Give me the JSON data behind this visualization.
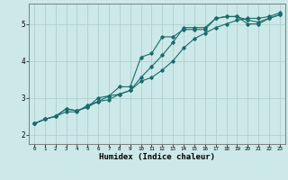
{
  "xlabel": "Humidex (Indice chaleur)",
  "background_color": "#cce8e8",
  "grid_color": "#b0d0d0",
  "line_color": "#1a6b6b",
  "xlim": [
    -0.5,
    23.5
  ],
  "ylim": [
    1.75,
    5.55
  ],
  "yticks": [
    2,
    3,
    4,
    5
  ],
  "xticks": [
    0,
    1,
    2,
    3,
    4,
    5,
    6,
    7,
    8,
    9,
    10,
    11,
    12,
    13,
    14,
    15,
    16,
    17,
    18,
    19,
    20,
    21,
    22,
    23
  ],
  "line1_x": [
    0,
    1,
    2,
    3,
    4,
    5,
    6,
    7,
    8,
    9,
    10,
    11,
    12,
    13,
    14,
    15,
    16,
    17,
    18,
    19,
    20,
    21,
    22,
    23
  ],
  "line1_y": [
    2.3,
    2.42,
    2.5,
    2.62,
    2.62,
    2.8,
    2.9,
    3.05,
    3.1,
    3.2,
    3.55,
    3.85,
    4.15,
    4.5,
    4.9,
    4.9,
    4.9,
    5.15,
    5.2,
    5.2,
    5.1,
    5.05,
    5.15,
    5.25
  ],
  "line2_x": [
    0,
    1,
    2,
    3,
    4,
    5,
    6,
    7,
    8,
    9,
    10,
    11,
    12,
    13,
    14,
    15,
    16,
    17,
    18,
    19,
    20,
    21,
    22,
    23
  ],
  "line2_y": [
    2.3,
    2.42,
    2.5,
    2.7,
    2.65,
    2.75,
    3.0,
    3.05,
    3.3,
    3.3,
    4.1,
    4.2,
    4.65,
    4.65,
    4.85,
    4.85,
    4.85,
    5.15,
    5.2,
    5.2,
    5.0,
    5.0,
    5.15,
    5.25
  ],
  "line3_x": [
    0,
    1,
    2,
    3,
    4,
    5,
    6,
    7,
    8,
    9,
    10,
    11,
    12,
    13,
    14,
    15,
    16,
    17,
    18,
    19,
    20,
    21,
    22,
    23
  ],
  "line3_y": [
    2.3,
    2.42,
    2.5,
    2.7,
    2.65,
    2.75,
    2.9,
    2.95,
    3.1,
    3.2,
    3.45,
    3.55,
    3.75,
    4.0,
    4.35,
    4.6,
    4.75,
    4.9,
    5.0,
    5.1,
    5.15,
    5.15,
    5.2,
    5.3
  ]
}
